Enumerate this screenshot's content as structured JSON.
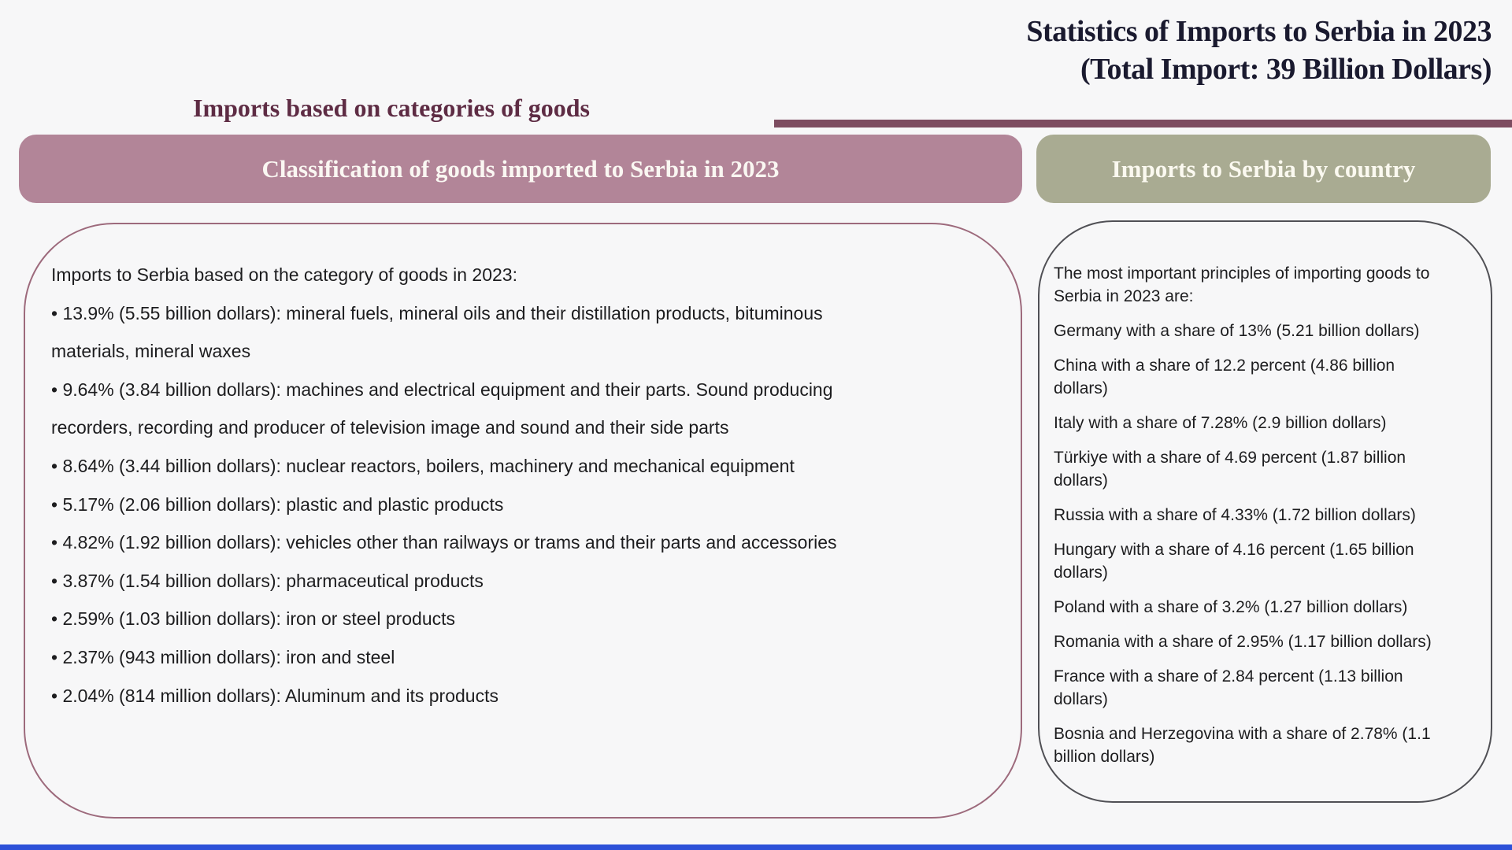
{
  "page": {
    "background_color": "#f7f7f8",
    "accent_line_color": "#7d4c60",
    "bottom_bar_color": "#2d51d8",
    "title_color": "#1a1a2f",
    "heading_color": "#5e2c44"
  },
  "title": {
    "line1": "Statistics of Imports to Serbia in 2023",
    "line2": "(Total Import: 39 Billion Dollars)"
  },
  "section_heading": "Imports based on categories of goods",
  "left_panel": {
    "header": "Classification of goods imported to Serbia in 2023",
    "header_color": "#b28598",
    "border_color": "#9d6a7c",
    "intro": "Imports to Serbia based on the category of goods in 2023:",
    "items": [
      "• 13.9% (5.55 billion dollars): mineral fuels, mineral oils and their distillation products, bituminous\nmaterials, mineral waxes",
      "• 9.64% (3.84 billion dollars): machines and electrical equipment and their parts. Sound producing\nrecorders, recording and producer of television image and sound and their side parts",
      "• 8.64% (3.44 billion dollars): nuclear reactors, boilers, machinery and mechanical equipment",
      "• 5.17% (2.06 billion dollars): plastic and plastic products",
      "• 4.82% (1.92 billion dollars): vehicles other than railways or trams and their parts and accessories",
      "• 3.87% (1.54 billion dollars): pharmaceutical products",
      "• 2.59% (1.03 billion dollars): iron or steel products",
      "• 2.37% (943 million dollars): iron and steel",
      "• 2.04% (814 million dollars): Aluminum and its products"
    ]
  },
  "right_panel": {
    "header": "Imports to Serbia by country",
    "header_color": "#a9ab92",
    "border_color": "#505055",
    "intro": "The most important principles of importing goods to\nSerbia in 2023 are:",
    "items": [
      "Germany with a share of 13% (5.21 billion dollars)",
      "China with a share of 12.2 percent (4.86 billion\ndollars)",
      "Italy with a share of 7.28% (2.9 billion dollars)",
      "Türkiye with a share of 4.69 percent (1.87 billion\ndollars)",
      "Russia with a share of 4.33% (1.72 billion dollars)",
      "Hungary with a share of 4.16 percent (1.65 billion\ndollars)",
      "Poland with a share of 3.2% (1.27 billion dollars)",
      "Romania with a share of 2.95% (1.17 billion dollars)",
      "France with a share of 2.84 percent (1.13 billion\ndollars)",
      "Bosnia and Herzegovina with a share of 2.78% (1.1\nbillion dollars)"
    ]
  }
}
